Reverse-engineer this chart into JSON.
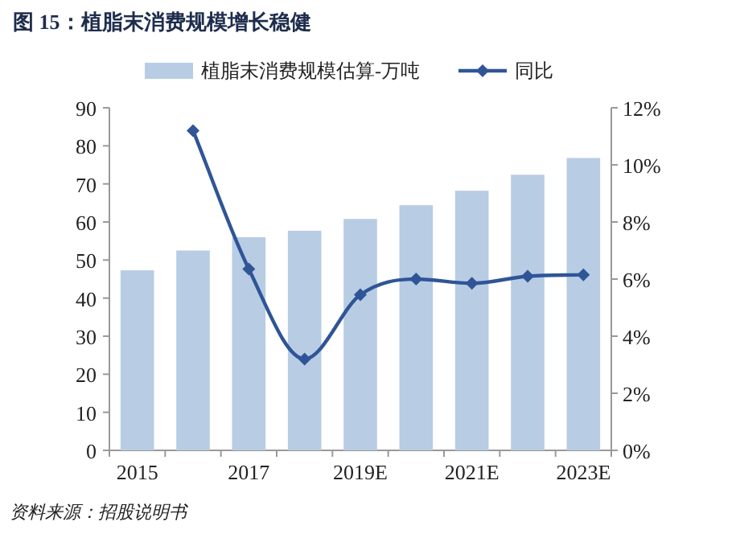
{
  "chart_data": {
    "type": "bar",
    "title": "图 15：植脂末消费规模增长稳健",
    "categories": [
      "2015",
      null,
      "2017",
      null,
      "2019E",
      null,
      "2021E",
      null,
      "2023E"
    ],
    "series": [
      {
        "name": "植脂末消费规模估算-万吨",
        "color": "#b8cce4",
        "values": [
          47.3,
          52.5,
          56,
          57.7,
          60.8,
          64.4,
          68.2,
          72.4,
          76.8
        ]
      },
      {
        "name": "同比",
        "type": "line",
        "axis": "y2",
        "color": "#2f5597",
        "marker": "diamond",
        "values": [
          null,
          11.2,
          6.35,
          3.2,
          5.45,
          6.0,
          5.85,
          6.1,
          6.15
        ]
      }
    ],
    "ylim": [
      0,
      90
    ],
    "yticks": [
      0,
      10,
      20,
      30,
      40,
      50,
      60,
      70,
      80,
      90
    ],
    "y2lim": [
      0,
      12
    ],
    "y2ticks": [
      {
        "value": 0,
        "label": "0%"
      },
      {
        "value": 2,
        "label": "2%"
      },
      {
        "value": 4,
        "label": "4%"
      },
      {
        "value": 6,
        "label": "6%"
      },
      {
        "value": 8,
        "label": "8%"
      },
      {
        "value": 10,
        "label": "10%"
      },
      {
        "value": 12,
        "label": "12%"
      }
    ],
    "legend": "top",
    "annotations": [
      "资料来源：招股说明书"
    ]
  }
}
